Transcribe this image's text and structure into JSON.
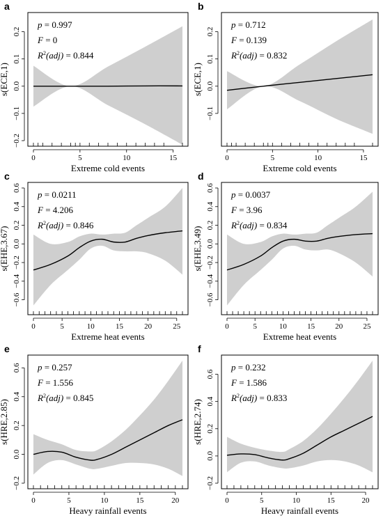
{
  "chart_data": [
    {
      "panel": "a",
      "type": "line",
      "xlabel": "Extreme cold events",
      "ylabel": "s(ECE,1)",
      "xlim": [
        0,
        16
      ],
      "ylim": [
        -0.2,
        0.25
      ],
      "xticks": [
        0,
        5,
        10,
        15
      ],
      "yticks": [
        -0.2,
        -0.1,
        0.0,
        0.1,
        0.2
      ],
      "stats": {
        "p": "0.997",
        "F": "0",
        "r2": "0.844"
      },
      "series": [
        {
          "x": [
            0,
            4,
            8,
            12,
            16
          ],
          "y": [
            0.0,
            0.0,
            0.0,
            0.001,
            0.001
          ]
        }
      ],
      "band": {
        "x": [
          0,
          4,
          8,
          12,
          16
        ],
        "lower": [
          -0.075,
          0.0,
          -0.07,
          -0.14,
          -0.215
        ],
        "upper": [
          0.075,
          0.0,
          0.072,
          0.145,
          0.22
        ]
      },
      "rug": [
        0,
        0.5,
        1,
        2,
        3,
        4,
        4.5,
        5,
        6,
        7,
        8,
        9,
        10,
        11,
        12,
        13,
        14,
        16
      ]
    },
    {
      "panel": "b",
      "type": "line",
      "xlabel": "Extreme cold events",
      "ylabel": "s(ECE,1)",
      "xlim": [
        0,
        16
      ],
      "ylim": [
        -0.2,
        0.25
      ],
      "xticks": [
        0,
        5,
        10,
        15
      ],
      "yticks": [
        -0.1,
        0.0,
        0.1,
        0.2
      ],
      "stats": {
        "p": "0.712",
        "F": "0.139",
        "r2": "0.832"
      },
      "series": [
        {
          "x": [
            0,
            4,
            8,
            12,
            16
          ],
          "y": [
            -0.015,
            0.0,
            0.014,
            0.028,
            0.042
          ]
        }
      ],
      "band": {
        "x": [
          0,
          4,
          8,
          12,
          16
        ],
        "lower": [
          -0.085,
          0.0,
          -0.055,
          -0.12,
          -0.175
        ],
        "upper": [
          0.055,
          0.0,
          0.08,
          0.165,
          0.245
        ]
      },
      "rug": [
        0,
        0.5,
        1,
        2,
        3,
        4,
        4.5,
        5,
        6,
        7,
        8,
        9,
        10,
        11,
        12,
        13,
        14,
        16
      ]
    },
    {
      "panel": "c",
      "type": "line",
      "xlabel": "Extreme heat events",
      "ylabel": "s(EHE,3.67)",
      "xlim": [
        0,
        26
      ],
      "ylim": [
        -0.7,
        0.6
      ],
      "xticks": [
        0,
        5,
        10,
        15,
        20,
        25
      ],
      "yticks": [
        -0.6,
        -0.4,
        -0.2,
        0.0,
        0.2,
        0.4,
        0.6
      ],
      "stats": {
        "p": "0.0211",
        "F": "4.206",
        "r2": "0.846"
      },
      "series": [
        {
          "x": [
            0,
            3,
            6,
            8,
            10,
            12,
            14,
            16,
            18,
            20,
            23,
            26
          ],
          "y": [
            -0.28,
            -0.22,
            -0.13,
            -0.04,
            0.03,
            0.05,
            0.02,
            0.02,
            0.06,
            0.09,
            0.12,
            0.14
          ]
        }
      ],
      "band": {
        "x": [
          0,
          3,
          6,
          8,
          10,
          12,
          14,
          16,
          18,
          20,
          23,
          26
        ],
        "lower": [
          -0.66,
          -0.44,
          -0.28,
          -0.17,
          -0.05,
          -0.02,
          -0.07,
          -0.08,
          -0.08,
          -0.1,
          -0.18,
          -0.33
        ],
        "upper": [
          0.1,
          0.0,
          0.02,
          0.08,
          0.11,
          0.1,
          0.11,
          0.12,
          0.2,
          0.28,
          0.4,
          0.6
        ]
      },
      "rug": [
        0,
        1,
        2,
        3,
        4,
        5,
        6,
        7,
        8,
        9,
        10,
        11,
        12,
        13,
        14,
        15,
        16,
        17,
        18,
        19,
        20,
        21,
        22,
        23,
        24,
        25,
        26
      ]
    },
    {
      "panel": "d",
      "type": "line",
      "xlabel": "Extreme heat events",
      "ylabel": "s(EHE,3.49)",
      "xlim": [
        0,
        26
      ],
      "ylim": [
        -0.7,
        0.6
      ],
      "xticks": [
        0,
        5,
        10,
        15,
        20,
        25
      ],
      "yticks": [
        -0.6,
        -0.4,
        -0.2,
        0.0,
        0.2,
        0.4,
        0.6
      ],
      "stats": {
        "p": "0.0037",
        "F": "3.96",
        "r2": "0.834"
      },
      "series": [
        {
          "x": [
            0,
            3,
            6,
            8,
            10,
            12,
            14,
            16,
            18,
            20,
            23,
            26
          ],
          "y": [
            -0.28,
            -0.22,
            -0.13,
            -0.04,
            0.03,
            0.05,
            0.03,
            0.03,
            0.06,
            0.08,
            0.1,
            0.11
          ]
        }
      ],
      "band": {
        "x": [
          0,
          3,
          6,
          8,
          10,
          12,
          14,
          16,
          18,
          20,
          23,
          26
        ],
        "lower": [
          -0.66,
          -0.44,
          -0.28,
          -0.17,
          -0.05,
          -0.02,
          -0.06,
          -0.07,
          -0.06,
          -0.1,
          -0.2,
          -0.35
        ],
        "upper": [
          0.1,
          0.0,
          0.02,
          0.08,
          0.11,
          0.1,
          0.11,
          0.12,
          0.2,
          0.28,
          0.4,
          0.56
        ]
      },
      "rug": [
        0,
        1,
        2,
        3,
        4,
        5,
        6,
        7,
        8,
        9,
        10,
        11,
        12,
        13,
        14,
        15,
        16,
        17,
        18,
        19,
        20,
        21,
        22,
        23,
        24,
        25,
        26
      ]
    },
    {
      "panel": "e",
      "type": "line",
      "xlabel": "Heavy rainfall events",
      "ylabel": "s(HRE,2.85)",
      "xlim": [
        0,
        21
      ],
      "ylim": [
        -0.2,
        0.65
      ],
      "xticks": [
        0,
        5,
        10,
        15,
        20
      ],
      "yticks": [
        -0.2,
        0.0,
        0.2,
        0.4,
        0.6
      ],
      "stats": {
        "p": "0.257",
        "F": "1.556",
        "r2": "0.845"
      },
      "series": [
        {
          "x": [
            0,
            2,
            4,
            6,
            8,
            9,
            11,
            13,
            15,
            17,
            19,
            21
          ],
          "y": [
            0.0,
            0.02,
            0.015,
            -0.02,
            -0.04,
            -0.035,
            0.0,
            0.05,
            0.1,
            0.15,
            0.2,
            0.24
          ]
        }
      ],
      "band": {
        "x": [
          0,
          2,
          4,
          6,
          8,
          9,
          11,
          13,
          15,
          17,
          19,
          21
        ],
        "lower": [
          -0.14,
          -0.06,
          -0.04,
          -0.07,
          -0.1,
          -0.1,
          -0.08,
          -0.06,
          -0.06,
          -0.07,
          -0.1,
          -0.15
        ],
        "upper": [
          0.14,
          0.1,
          0.07,
          0.03,
          0.02,
          0.03,
          0.09,
          0.17,
          0.27,
          0.38,
          0.51,
          0.65
        ]
      },
      "rug": [
        0,
        1,
        2,
        3,
        4,
        5,
        6,
        7,
        8,
        9,
        10,
        11,
        12,
        13,
        14,
        15,
        16,
        17,
        18,
        19,
        20,
        21
      ]
    },
    {
      "panel": "f",
      "type": "line",
      "xlabel": "Heavy rainfall events",
      "ylabel": "s(HRE,2.74)",
      "xlim": [
        0,
        21
      ],
      "ylim": [
        -0.2,
        0.7
      ],
      "xticks": [
        0,
        5,
        10,
        15,
        20
      ],
      "yticks": [
        -0.2,
        0.0,
        0.2,
        0.4,
        0.6
      ],
      "stats": {
        "p": "0.232",
        "F": "1.586",
        "r2": "0.833"
      },
      "series": [
        {
          "x": [
            0,
            2,
            4,
            6,
            8,
            9,
            11,
            13,
            15,
            17,
            19,
            21
          ],
          "y": [
            0.005,
            0.015,
            0.01,
            -0.015,
            -0.03,
            -0.02,
            0.02,
            0.08,
            0.14,
            0.19,
            0.24,
            0.29
          ]
        }
      ],
      "band": {
        "x": [
          0,
          2,
          4,
          6,
          8,
          9,
          11,
          13,
          15,
          17,
          19,
          21
        ],
        "lower": [
          -0.12,
          -0.05,
          -0.04,
          -0.07,
          -0.09,
          -0.09,
          -0.07,
          -0.04,
          -0.03,
          -0.04,
          -0.07,
          -0.12
        ],
        "upper": [
          0.14,
          0.09,
          0.06,
          0.04,
          0.03,
          0.05,
          0.11,
          0.2,
          0.31,
          0.43,
          0.56,
          0.7
        ]
      },
      "rug": [
        0,
        1,
        2,
        3,
        4,
        5,
        6,
        7,
        8,
        9,
        10,
        11,
        12,
        13,
        14,
        15,
        16,
        17,
        18,
        19,
        20,
        21
      ]
    }
  ]
}
